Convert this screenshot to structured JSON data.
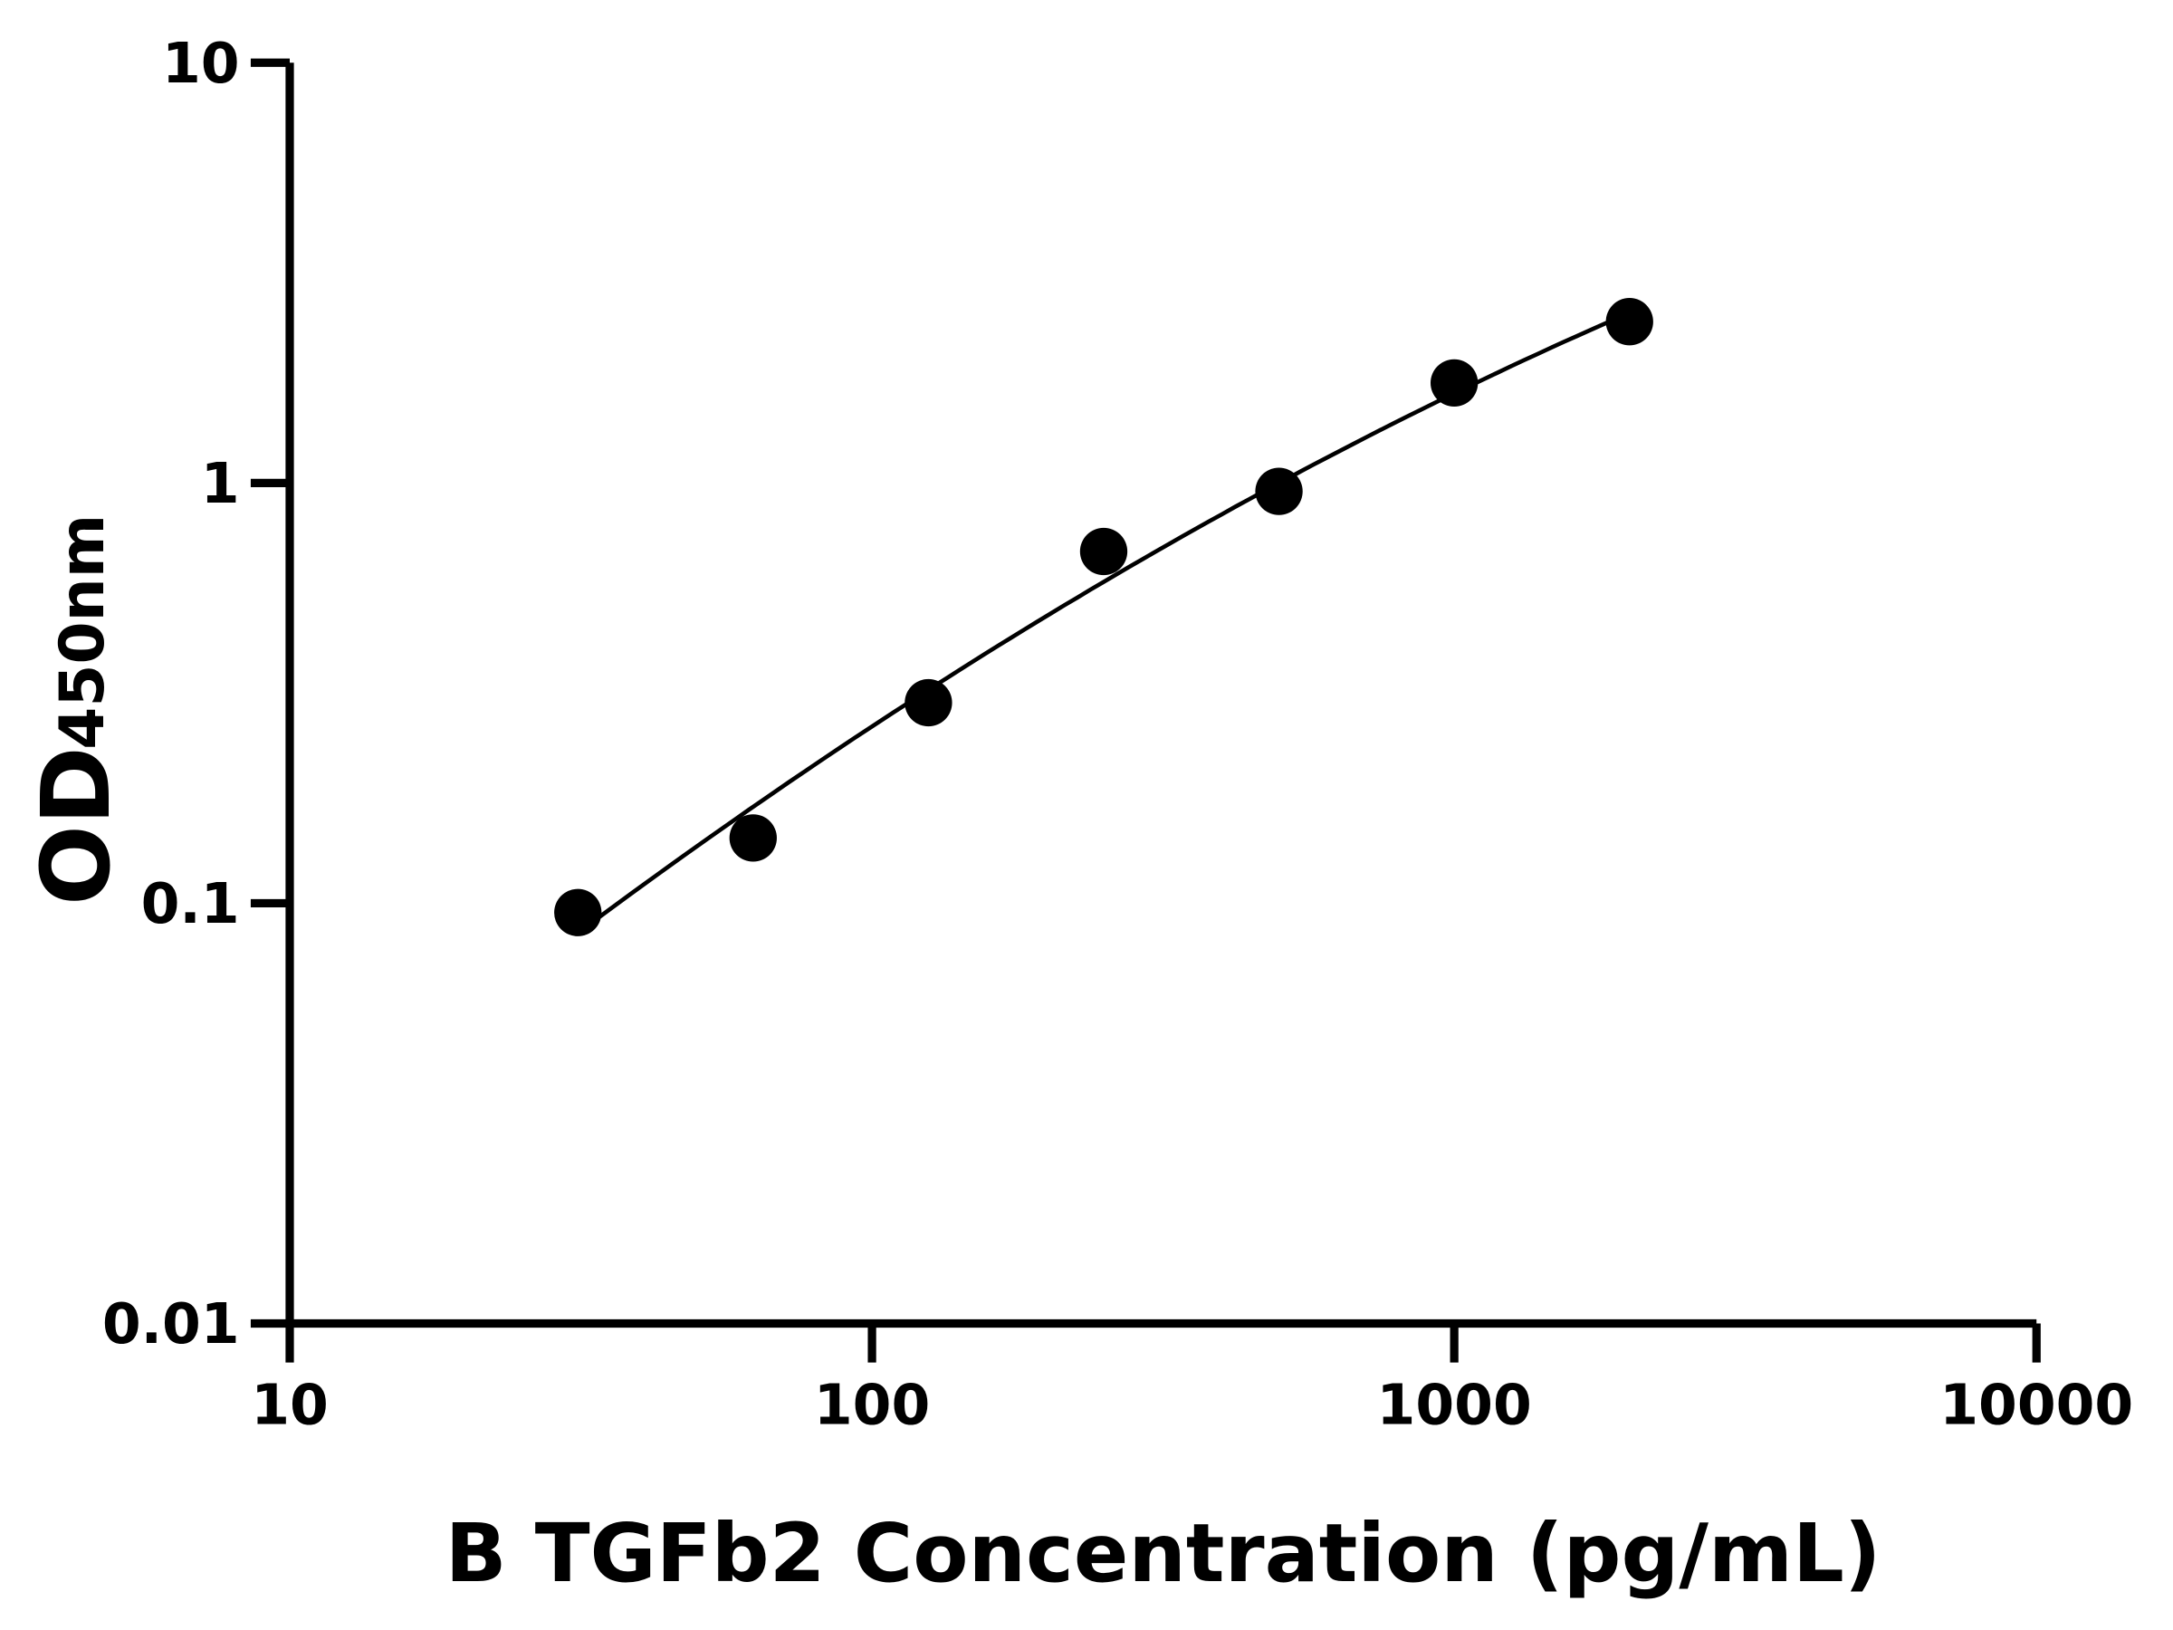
{
  "chart_data": {
    "type": "scatter",
    "title": "",
    "xlabel": "B TGFb2 Concentration (pg/mL)",
    "ylabel_main": "OD",
    "ylabel_sub": "450nm",
    "xscale": "log",
    "yscale": "log",
    "xlim": [
      10,
      10000
    ],
    "ylim": [
      0.01,
      10
    ],
    "xticks": [
      "10",
      "100",
      "1000",
      "10000"
    ],
    "yticks": [
      "0.01",
      "0.1",
      "1",
      "10"
    ],
    "grid": false,
    "legend": "none",
    "fit_line": "smooth curve through points",
    "color": "#000000",
    "points": [
      {
        "x": 31.25,
        "y": 0.095
      },
      {
        "x": 62.5,
        "y": 0.143
      },
      {
        "x": 125,
        "y": 0.3
      },
      {
        "x": 250,
        "y": 0.687
      },
      {
        "x": 500,
        "y": 0.955
      },
      {
        "x": 1000,
        "y": 1.73
      },
      {
        "x": 2000,
        "y": 2.42
      }
    ]
  }
}
